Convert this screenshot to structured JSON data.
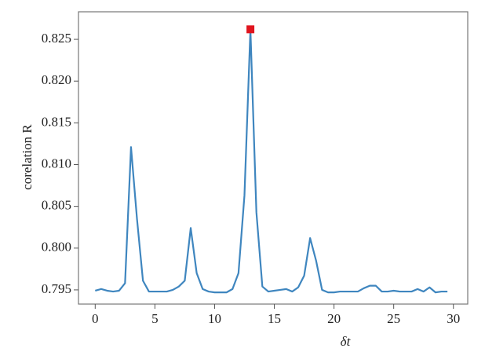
{
  "chart_data": {
    "type": "line",
    "xlabel": "δt",
    "ylabel": "corelation R",
    "x": [
      0,
      0.5,
      1,
      1.5,
      2,
      2.5,
      3,
      3.5,
      4,
      4.5,
      5,
      5.5,
      6,
      6.5,
      7,
      7.5,
      8,
      8.5,
      9,
      9.5,
      10,
      10.5,
      11,
      11.5,
      12,
      12.5,
      13,
      13.5,
      14,
      14.5,
      15,
      15.5,
      16,
      16.5,
      17,
      17.5,
      18,
      18.5,
      19,
      19.5,
      20,
      20.5,
      21,
      21.5,
      22,
      22.5,
      23,
      23.5,
      24,
      24.5,
      25,
      25.5,
      26,
      26.5,
      27,
      27.5,
      28,
      28.5,
      29,
      29.5
    ],
    "series": [
      {
        "name": "R",
        "color": "#3f86bf",
        "values": [
          0.7949,
          0.7951,
          0.7949,
          0.7948,
          0.7949,
          0.7958,
          0.8121,
          0.8035,
          0.7961,
          0.7948,
          0.7948,
          0.7948,
          0.7948,
          0.795,
          0.7954,
          0.7961,
          0.8024,
          0.797,
          0.7951,
          0.7948,
          0.7947,
          0.7947,
          0.7947,
          0.7951,
          0.797,
          0.8063,
          0.8262,
          0.8043,
          0.7954,
          0.7948,
          0.7949,
          0.795,
          0.7951,
          0.7948,
          0.7953,
          0.7967,
          0.8012,
          0.7985,
          0.795,
          0.7947,
          0.7947,
          0.7948,
          0.7948,
          0.7948,
          0.7948,
          0.7952,
          0.7955,
          0.7955,
          0.7948,
          0.7948,
          0.7949,
          0.7948,
          0.7948,
          0.7948,
          0.7951,
          0.7948,
          0.7953,
          0.7947,
          0.7948,
          0.7948
        ]
      }
    ],
    "highlight": {
      "x": 13,
      "y": 0.8262,
      "color": "#e0141e"
    },
    "xlim": [
      -1.4,
      31.2
    ],
    "ylim": [
      0.7933,
      0.8283
    ],
    "xticks": [
      0,
      5,
      10,
      15,
      20,
      25,
      30
    ],
    "yticks": [
      0.795,
      {
        "value": 0.8,
        "label": "0.800"
      },
      0.805,
      {
        "value": 0.81,
        "label": "0.810"
      },
      0.815,
      {
        "value": 0.82,
        "label": "0.820"
      },
      0.825
    ]
  }
}
